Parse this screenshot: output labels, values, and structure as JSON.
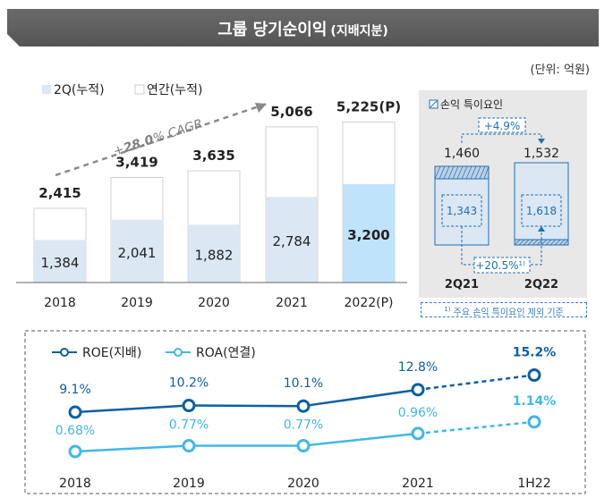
{
  "title": {
    "main": "그룹 당기순이익",
    "sub": "(지배지분)"
  },
  "unit_label": "(단위: 억원)",
  "inset": {
    "legend": "손익 특이요인",
    "growth_total": "+4.9%",
    "growth_adjusted": "+20.5%",
    "growth_adjusted_sup": "1)",
    "footnote_sup": "1)",
    "footnote": "주요 손익 특이요인 제외 기준"
  },
  "colors": {
    "accent": "#1f6fb2",
    "light_bar": "#dbe7f2",
    "highlight_bar": "#bfe3fb",
    "roe": "#0e5fa3",
    "roa": "#40b8e6",
    "gray_banner": "#5d5d5d"
  },
  "chart_data": [
    {
      "type": "bar",
      "title": "그룹 당기순이익 (지배지분)",
      "categories": [
        "2018",
        "2019",
        "2020",
        "2021",
        "2022(P)"
      ],
      "series": [
        {
          "name": "2Q(누적)",
          "values": [
            1384,
            2041,
            1882,
            2784,
            3200
          ],
          "labels": [
            "1,384",
            "2,041",
            "1,882",
            "2,784",
            "3,200"
          ]
        },
        {
          "name": "연간(누적)",
          "values": [
            2415,
            3419,
            3635,
            5066,
            5225
          ],
          "labels": [
            "2,415",
            "3,419",
            "3,635",
            "5,066",
            "5,225(P)"
          ]
        }
      ],
      "annotation": {
        "prefix": "+",
        "value": "28.0",
        "suffix": "% CAGR"
      },
      "ylim": [
        0,
        6000
      ]
    },
    {
      "type": "bar",
      "title": "손익 특이요인",
      "categories": [
        "2Q21",
        "2Q22"
      ],
      "series": [
        {
          "name": "당기순이익",
          "values": [
            1460,
            1532
          ],
          "labels": [
            "1,460",
            "1,532"
          ]
        },
        {
          "name": "특이요인 제외",
          "values": [
            1343,
            1618
          ],
          "labels": [
            "1,343",
            "1,618"
          ]
        }
      ]
    },
    {
      "type": "line",
      "categories": [
        "2018",
        "2019",
        "2020",
        "2021",
        "1H22"
      ],
      "series": [
        {
          "name": "ROE(지배)",
          "values": [
            9.1,
            10.2,
            10.1,
            12.8,
            15.2
          ],
          "labels": [
            "9.1%",
            "10.2%",
            "10.1%",
            "12.8%",
            "15.2%"
          ]
        },
        {
          "name": "ROA(연결)",
          "values": [
            0.68,
            0.77,
            0.77,
            0.96,
            1.14
          ],
          "labels": [
            "0.68%",
            "0.77%",
            "0.77%",
            "0.96%",
            "1.14%"
          ]
        }
      ]
    }
  ]
}
